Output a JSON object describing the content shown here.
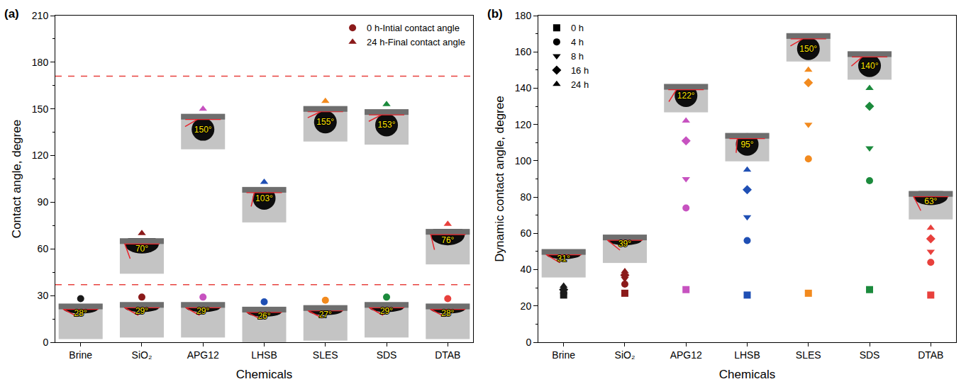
{
  "chart_data": [
    {
      "panel": "(a)",
      "type": "scatter",
      "categories": [
        "Brine",
        "SiO₂",
        "APG12",
        "LHSB",
        "SLES",
        "SDS",
        "DTAB"
      ],
      "colors": [
        "#1a1a1a",
        "#8b1a1a",
        "#c752c0",
        "#1f4fb4",
        "#f28a1e",
        "#1b8a3c",
        "#e8403c"
      ],
      "series": [
        {
          "name": "0 h-Intial contact angle",
          "color": "#8b1a1a",
          "marker": "circle",
          "values": [
            28,
            29,
            29,
            26,
            27,
            29,
            28
          ],
          "value_labels": [
            "28°",
            "29°",
            "29°",
            "26°",
            "27°",
            "29°",
            "28°"
          ]
        },
        {
          "name": "24 h-Final contact angle",
          "color": "#8b1a1a",
          "marker": "triangle-up",
          "values": [
            null,
            70,
            150,
            103,
            155,
            153,
            76
          ],
          "value_labels": [
            null,
            "70°",
            "150°",
            "103°",
            "155°",
            "153°",
            "76°"
          ]
        }
      ],
      "hlines": [
        {
          "value": 171,
          "color": "#e8423f",
          "line_style": "dash"
        },
        {
          "value": 37,
          "color": "#e8423f",
          "line_style": "dash"
        }
      ],
      "x_label": "Chemicals",
      "y_label": "Contact angle, degree",
      "ylim": [
        0,
        210
      ],
      "yticks": [
        0,
        30,
        60,
        90,
        120,
        150,
        180,
        210
      ],
      "legend": "top right",
      "data_labels": true,
      "grid": false
    },
    {
      "panel": "(b)",
      "type": "scatter",
      "categories": [
        "Brine",
        "SiO₂",
        "APG12",
        "LHSB",
        "SLES",
        "SDS",
        "DTAB"
      ],
      "colors": [
        "#1a1a1a",
        "#8b1a1a",
        "#c752c0",
        "#1f4fb4",
        "#f28a1e",
        "#1b8a3c",
        "#e8403c"
      ],
      "series": [
        {
          "name": "0 h",
          "color": "#000000",
          "marker": "square",
          "values": [
            26,
            27,
            29,
            26,
            27,
            29,
            26
          ]
        },
        {
          "name": "4 h",
          "color": "#000000",
          "marker": "circle",
          "values": [
            27,
            32,
            74,
            56,
            101,
            89,
            44
          ]
        },
        {
          "name": "8 h",
          "color": "#000000",
          "marker": "triangle-down",
          "values": [
            28,
            35,
            90,
            69,
            120,
            107,
            50
          ]
        },
        {
          "name": "16 h",
          "color": "#000000",
          "marker": "diamond",
          "values": [
            29,
            37,
            111,
            84,
            143,
            130,
            57
          ]
        },
        {
          "name": "24 h",
          "color": "#000000",
          "marker": "triangle-up",
          "values": [
            31,
            39,
            122,
            95,
            150,
            140,
            63
          ],
          "value_labels": [
            "31°",
            "39°",
            "122°",
            "95°",
            "150°",
            "140°",
            "63°"
          ]
        }
      ],
      "x_label": "Chemicals",
      "y_label": "Dynamic contact angle, degree",
      "ylim": [
        0,
        180
      ],
      "yticks": [
        0,
        20,
        40,
        60,
        80,
        100,
        120,
        140,
        160,
        180
      ],
      "legend": "top left",
      "data_labels": true,
      "grid": false
    }
  ]
}
